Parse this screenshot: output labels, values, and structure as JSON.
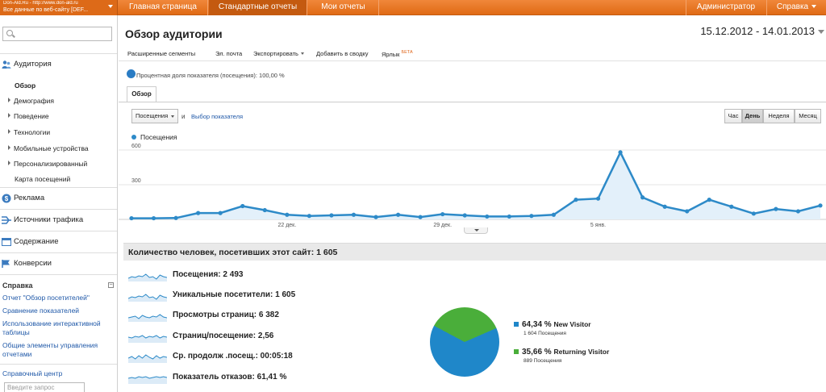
{
  "topbar": {
    "account_line1": "Don-Ald.Ru - http://www.don-ald.ru",
    "account_line2": "Все данные по веб-сайту [DEF...",
    "tabs": [
      "Главная страница",
      "Стандартные отчеты",
      "Мои отчеты"
    ],
    "admin": "Администратор",
    "help": "Справка"
  },
  "sidebar": {
    "search_placeholder": "",
    "audience": "Аудитория",
    "audience_items": [
      "Обзор",
      "Демография",
      "Поведение",
      "Технологии",
      "Мобильные устройства",
      "Персонализированный",
      "Карта посещений"
    ],
    "ads": "Реклама",
    "traffic": "Источники трафика",
    "content": "Содержание",
    "conversions": "Конверсии",
    "help_title": "Справка",
    "help_toggle": "−",
    "help_links": [
      "Отчет \"Обзор посетителей\"",
      "Сравнение показателей",
      "Использование интерактивной таблицы",
      "Общие элементы управления отчетами"
    ],
    "help_center": "Справочный центр",
    "help_search_placeholder": "Введите запрос"
  },
  "main": {
    "title": "Обзор аудитории",
    "date_range": "15.12.2012 - 14.01.2013",
    "toolbar": {
      "segments": "Расширенные сегменты",
      "email": "Эл. почта",
      "export": "Экспортировать",
      "add_dashboard": "Добавить в сводку",
      "shortcut": "Ярлык",
      "beta": "БЕТА"
    },
    "metric_share": "Процентная доля показателя (посещения): 100,00 %",
    "tab_overview": "Обзор",
    "metric_select": "Посещения",
    "and": "и",
    "pick_metric": "Выбор показателя",
    "periods": [
      "Час",
      "День",
      "Неделя",
      "Месяц"
    ],
    "active_period": "День",
    "people_title": "Количество человек, посетивших этот сайт: 1 605",
    "stats": [
      "Посещения: 2 493",
      "Уникальные посетители: 1 605",
      "Просмотры страниц: 6 382",
      "Страниц/посещение: 2,56",
      "Ср. продолж .посещ.: 00:05:18",
      "Показатель отказов: 61,41 %"
    ],
    "visitors": [
      {
        "pct": "64,34 %",
        "name": "New Visitor",
        "count": "1 604 Посещения",
        "color": "#1f87c9",
        "value": 64.34
      },
      {
        "pct": "35,66 %",
        "name": "Returning Visitor",
        "count": "889 Посещения",
        "color": "#4aae3a",
        "value": 35.66
      }
    ]
  },
  "chart_data": {
    "type": "area",
    "series": [
      {
        "name": "Посещения",
        "values": [
          10,
          10,
          12,
          55,
          55,
          115,
          80,
          40,
          30,
          35,
          40,
          20,
          40,
          20,
          45,
          35,
          25,
          25,
          30,
          40,
          170,
          180,
          580,
          190,
          110,
          70,
          170,
          110,
          50,
          90,
          70,
          120
        ]
      }
    ],
    "x_ticks": [
      {
        "index": 7,
        "label": "22 дек."
      },
      {
        "index": 14,
        "label": "29 дек."
      },
      {
        "index": 21,
        "label": "5 янв."
      }
    ],
    "y_ticks": [
      300,
      600
    ],
    "ylim": [
      0,
      600
    ],
    "color": "#2d8ac8"
  }
}
